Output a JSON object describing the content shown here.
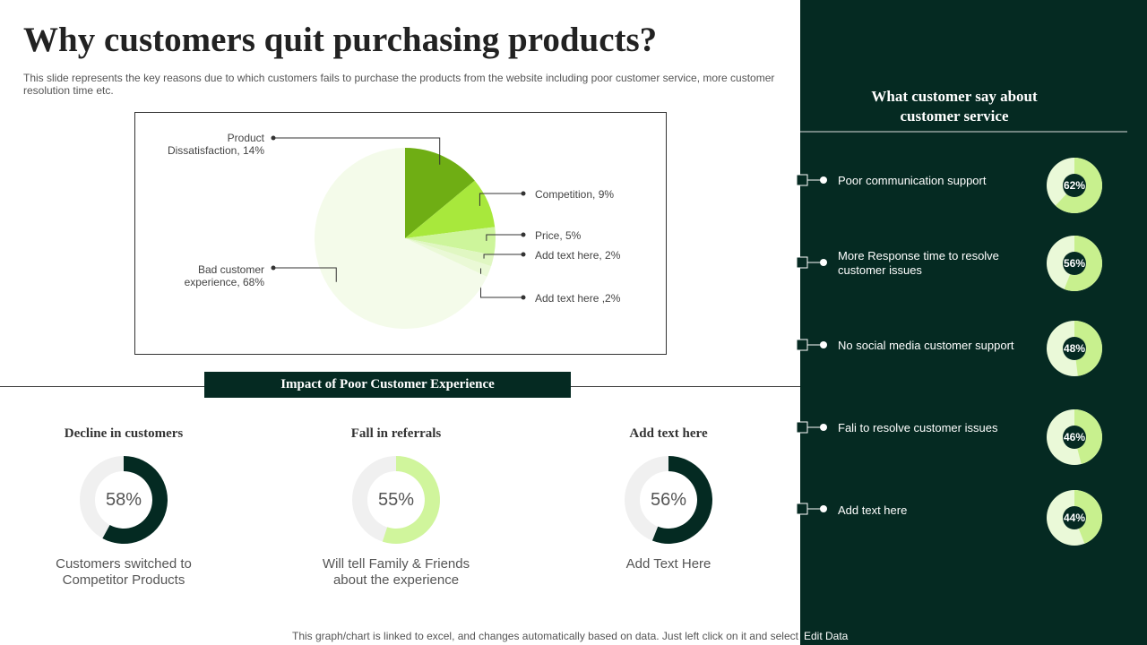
{
  "title": "Why customers quit purchasing products?",
  "subtitle": "This slide represents the key reasons due to which customers fails to purchase the products from the website including poor customer service, more customer resolution time etc.",
  "section_title": "Impact  of Poor Customer Experience",
  "panel_title": "What customer say about customer service",
  "footer": "This graph/chart is linked to excel,  and changes automatically based on data. Just left click on it and select",
  "footer_link": "Edit Data",
  "chart_data": [
    {
      "type": "pie",
      "categories": [
        "Product Dissatisfaction",
        "Competition",
        "Price",
        "Add text here",
        "Add text here",
        "Bad customer experience"
      ],
      "values": [
        14,
        9,
        5,
        2,
        2,
        68
      ],
      "value_labels": [
        "Product Dissatisfaction, 14%",
        "Competition, 9%",
        "Price, 5%",
        "Add text here, 2%",
        "Add text here ,2%",
        "Bad customer experience, 68%"
      ],
      "colors": [
        "#6fae14",
        "#a8e83c",
        "#cdf59b",
        "#e0f7c2",
        "#eaf9d6",
        "#f4fbea"
      ]
    },
    {
      "type": "donut",
      "title": "Decline in customers",
      "values": [
        58
      ],
      "value_labels": [
        "58%"
      ],
      "caption": "Customers switched to Competitor Products",
      "color": "#042a22"
    },
    {
      "type": "donut",
      "title": "Fall in referrals",
      "values": [
        55
      ],
      "value_labels": [
        "55%"
      ],
      "caption": "Will tell Family & Friends about the experience",
      "color": "#d0f59c"
    },
    {
      "type": "donut",
      "title": "Add text here",
      "values": [
        56
      ],
      "value_labels": [
        "56%"
      ],
      "caption": "Add Text Here",
      "color": "#042a22"
    },
    {
      "type": "ring-list",
      "categories": [
        "Poor communication support",
        "More Response time to resolve customer issues",
        "No social media customer support",
        "Fali to resolve  customer issues",
        "Add text here"
      ],
      "values": [
        62,
        56,
        48,
        46,
        44
      ],
      "value_labels": [
        "62%",
        "56%",
        "48%",
        "46%",
        "44%"
      ],
      "color": "#c8f08e"
    }
  ]
}
